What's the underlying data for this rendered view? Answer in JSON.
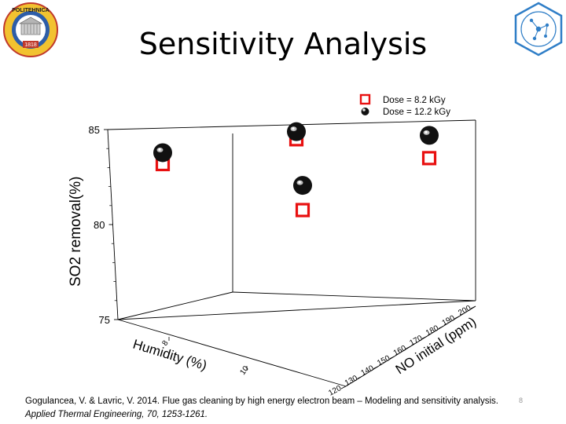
{
  "slide": {
    "title": "Sensitivity Analysis",
    "page_number": "8",
    "citation_line1": "Gogulancea, V. & Lavric, V. 2014. Flue gas cleaning by high energy electron beam – Modeling and sensitivity analysis.",
    "citation_line2": "Applied Thermal Engineering, 70, 1253-1261."
  },
  "logos": {
    "left": {
      "icon": "university-seal-icon",
      "text_top": "POLITEHNICA",
      "year": "1818"
    },
    "right": {
      "icon": "hexagon-molecule-logo-icon"
    }
  },
  "chart_data": {
    "type": "scatter",
    "title": "",
    "xlabel": "Humidity (%)",
    "ylabel": "NO initial (ppm)",
    "zlabel": "SO2 removal(%)",
    "zlim": [
      75,
      85
    ],
    "z_ticks": [
      "85",
      "80",
      "75"
    ],
    "x_ticks": [
      "8",
      "10"
    ],
    "y_ticks": [
      "120",
      "130",
      "140",
      "150",
      "160",
      "170",
      "180",
      "190",
      "200"
    ],
    "legend_position": "top-right",
    "series": [
      {
        "name": "Dose = 8.2 kGy",
        "marker": "hollow-square",
        "color": "#e81010",
        "points": [
          {
            "humidity": 8,
            "no_initial": 160,
            "so2_removal": 83.1
          },
          {
            "humidity": 9,
            "no_initial": 170,
            "so2_removal": 84.2
          },
          {
            "humidity": 10,
            "no_initial": 160,
            "so2_removal": 81.3
          },
          {
            "humidity": 10,
            "no_initial": 200,
            "so2_removal": 83.0
          }
        ]
      },
      {
        "name": "Dose = 12.2 kGy",
        "marker": "sphere",
        "color": "#111111",
        "points": [
          {
            "humidity": 8,
            "no_initial": 160,
            "so2_removal": 83.7
          },
          {
            "humidity": 9,
            "no_initial": 170,
            "so2_removal": 84.6
          },
          {
            "humidity": 10,
            "no_initial": 160,
            "so2_removal": 82.6
          },
          {
            "humidity": 10,
            "no_initial": 200,
            "so2_removal": 84.2
          }
        ]
      }
    ]
  }
}
